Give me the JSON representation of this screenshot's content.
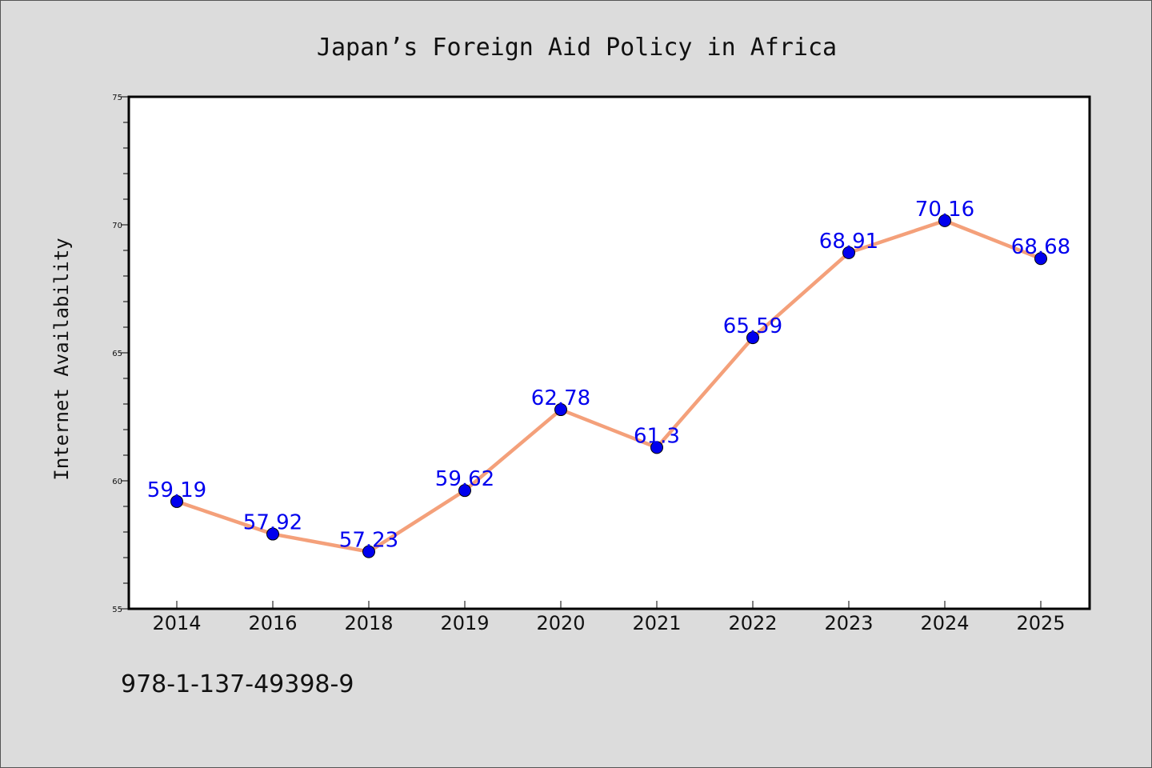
{
  "chart_data": {
    "type": "line",
    "title": "Japan’s Foreign Aid Policy in Africa",
    "xlabel": "",
    "ylabel": "Internet Availability",
    "categories": [
      "2014",
      "2016",
      "2018",
      "2019",
      "2020",
      "2021",
      "2022",
      "2023",
      "2024",
      "2025"
    ],
    "series": [
      {
        "values": [
          59.19,
          57.92,
          57.23,
          59.62,
          62.78,
          61.3,
          65.59,
          68.91,
          70.16,
          68.68
        ],
        "labels": [
          "59.19",
          "57.92",
          "57.23",
          "59.62",
          "62.78",
          "61.3",
          "65.59",
          "68.91",
          "70.16",
          "68.68"
        ],
        "line_color": "#f4a07a",
        "marker_color": "#0000ee"
      }
    ],
    "ylim": [
      55,
      75
    ],
    "yticks": [
      "55",
      "60",
      "65",
      "70",
      "75"
    ],
    "yticks_values": [
      55,
      60,
      65,
      70,
      75
    ],
    "grid": false,
    "legend": "none"
  },
  "footer": {
    "code": "978-1-137-49398-9"
  }
}
